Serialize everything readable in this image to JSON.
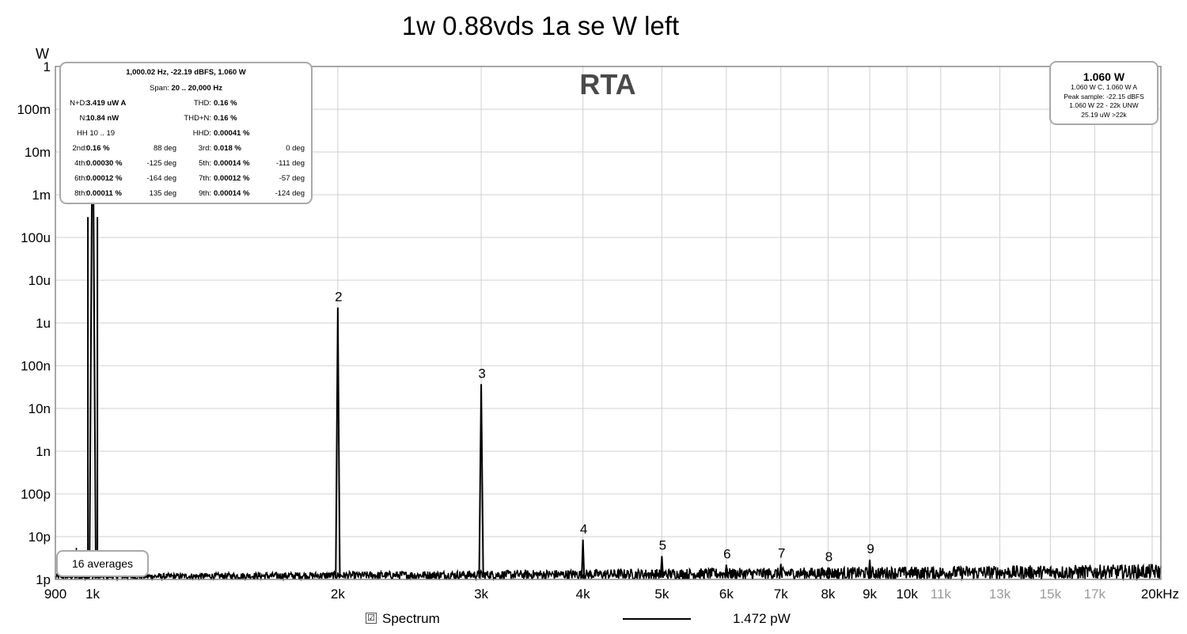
{
  "chart_data": {
    "type": "line",
    "title": "1w 0.88vds 1a se W left",
    "watermark": "RTA",
    "y_unit": "W",
    "x_unit": "Hz",
    "x_scale": "log",
    "y_scale": "log",
    "xlim": [
      900,
      20500
    ],
    "ylim": [
      1e-12,
      1
    ],
    "x_ticks": [
      {
        "value": 900,
        "label": "900",
        "muted": false
      },
      {
        "value": 1000,
        "label": "1k",
        "muted": false
      },
      {
        "value": 2000,
        "label": "2k",
        "muted": false
      },
      {
        "value": 3000,
        "label": "3k",
        "muted": false
      },
      {
        "value": 4000,
        "label": "4k",
        "muted": false
      },
      {
        "value": 5000,
        "label": "5k",
        "muted": false
      },
      {
        "value": 6000,
        "label": "6k",
        "muted": false
      },
      {
        "value": 7000,
        "label": "7k",
        "muted": false
      },
      {
        "value": 8000,
        "label": "8k",
        "muted": false
      },
      {
        "value": 9000,
        "label": "9k",
        "muted": false
      },
      {
        "value": 10000,
        "label": "10k",
        "muted": false
      },
      {
        "value": 11000,
        "label": "11k",
        "muted": true
      },
      {
        "value": 13000,
        "label": "13k",
        "muted": true
      },
      {
        "value": 15000,
        "label": "15k",
        "muted": true
      },
      {
        "value": 17000,
        "label": "17k",
        "muted": true
      },
      {
        "value": 20000,
        "label": "20kHz",
        "muted": false
      }
    ],
    "y_ticks": [
      {
        "value": 1,
        "label": "1"
      },
      {
        "value": 0.1,
        "label": "100m"
      },
      {
        "value": 0.01,
        "label": "10m"
      },
      {
        "value": 0.001,
        "label": "1m"
      },
      {
        "value": 0.0001,
        "label": "100u"
      },
      {
        "value": 1e-05,
        "label": "10u"
      },
      {
        "value": 1e-06,
        "label": "1u"
      },
      {
        "value": 1e-07,
        "label": "100n"
      },
      {
        "value": 1e-08,
        "label": "10n"
      },
      {
        "value": 1e-09,
        "label": "1n"
      },
      {
        "value": 1e-10,
        "label": "100p"
      },
      {
        "value": 1e-11,
        "label": "10p"
      },
      {
        "value": 1e-12,
        "label": "1p"
      }
    ],
    "grid": true,
    "series": [
      {
        "name": "Spectrum",
        "color": "#000000"
      }
    ],
    "peaks": [
      {
        "x": 1000,
        "y": 1.06,
        "label": ""
      },
      {
        "x": 2000,
        "y": 2.3e-06,
        "label": "2"
      },
      {
        "x": 3000,
        "y": 3.7e-08,
        "label": "3"
      },
      {
        "x": 4000,
        "y": 8.5e-12,
        "label": "4"
      },
      {
        "x": 5000,
        "y": 3.5e-12,
        "label": "5"
      },
      {
        "x": 6000,
        "y": 2.2e-12,
        "label": "6"
      },
      {
        "x": 7000,
        "y": 2.3e-12,
        "label": "7"
      },
      {
        "x": 8000,
        "y": 1.9e-12,
        "label": "8"
      },
      {
        "x": 9000,
        "y": 2.9e-12,
        "label": "9"
      }
    ],
    "noise_floor": {
      "low": 1e-12,
      "high": 3e-12
    }
  },
  "distortion_panel": {
    "header": "1,000.02 Hz, -22.19 dBFS, 1.060 W",
    "span_label": "Span:",
    "span_value": "20 .. 20,000 Hz",
    "nd_label": "N+D:",
    "nd_value": "3.419 uW A",
    "thd_label": "THD:",
    "thd_value": "0.16 %",
    "n_label": "N:",
    "n_value": "10.84 nW",
    "thdn_label": "THD+N:",
    "thdn_value": "0.16 %",
    "hh_label": "HH 10 .. 19",
    "hhd_label": "HHD:",
    "hhd_value": "0.00041 %",
    "harmonics": [
      {
        "label": "2nd:",
        "value": "0.16 %",
        "phase": "88 deg"
      },
      {
        "label": "3rd:",
        "value": "0.018 %",
        "phase": "0 deg"
      },
      {
        "label": "4th:",
        "value": "0.00030 %",
        "phase": "-125 deg"
      },
      {
        "label": "5th:",
        "value": "0.00014 %",
        "phase": "-111 deg"
      },
      {
        "label": "6th:",
        "value": "0.00012 %",
        "phase": "-164 deg"
      },
      {
        "label": "7th:",
        "value": "0.00012 %",
        "phase": "-57 deg"
      },
      {
        "label": "8th:",
        "value": "0.00011 %",
        "phase": "135 deg"
      },
      {
        "label": "9th:",
        "value": "0.00014 %",
        "phase": "-124 deg"
      }
    ]
  },
  "level_panel": {
    "main": "1.060 W",
    "line1": "1.060 W C, 1.060 W A",
    "line2": "Peak sample: -22.15 dBFS",
    "line3": "1.060 W 22 - 22k UNW",
    "line4": "25.19 uW >22k"
  },
  "averages": "16 averages",
  "legend": {
    "checked_mark": "☑",
    "series_name": "Spectrum",
    "cursor_value": "1.472 pW"
  }
}
